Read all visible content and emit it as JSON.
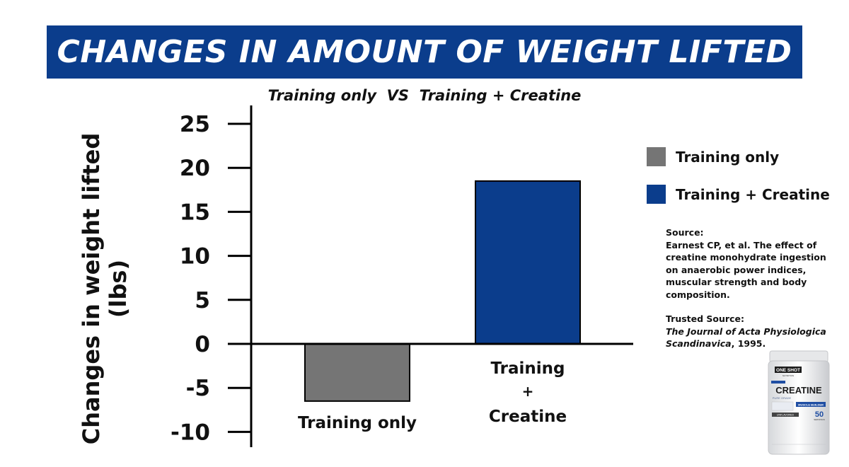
{
  "banner": {
    "title": "CHANGES IN AMOUNT OF WEIGHT LIFTED"
  },
  "chart_data": {
    "type": "bar",
    "title": "CHANGES IN AMOUNT OF WEIGHT LIFTED",
    "subtitle": "Training only  VS  Training + Creatine",
    "ylabel_line1": "Changes in weight lifted",
    "ylabel_line2": "(lbs)",
    "categories": [
      "Training only",
      "Training + Creatine"
    ],
    "category_label_lines": [
      [
        "Training only"
      ],
      [
        "Training",
        "+",
        "Creatine"
      ]
    ],
    "values": [
      -6.5,
      18.5
    ],
    "colors": [
      "#757575",
      "#0b3d8c"
    ],
    "ylim": [
      -10,
      25
    ],
    "yticks": [
      25,
      20,
      15,
      10,
      5,
      0,
      -5,
      -10
    ],
    "grid": false,
    "legend_position": "right"
  },
  "legend": {
    "items": [
      {
        "label": "Training only",
        "color": "#757575"
      },
      {
        "label": "Training + Creatine",
        "color": "#0b3d8c"
      }
    ]
  },
  "source": {
    "heading": "Source:",
    "citation": "Earnest CP, et al. The effect of creatine monohydrate ingestion on anaerobic power indices, muscular strength and body composition.",
    "trusted_heading": "Trusted Source:",
    "journal": "The Journal of Acta Physiologica Scandinavica",
    "year_suffix": ", 1995."
  },
  "product": {
    "brand": "ONE SHOT",
    "brand_sub": "NUTRITION",
    "name": "CREATINE",
    "grade": "PURE GRADE",
    "tag": "MUSCLE BUILDER",
    "flavor": "UNFLAVORED",
    "servings": "50",
    "servings_label": "SERVINGS"
  }
}
